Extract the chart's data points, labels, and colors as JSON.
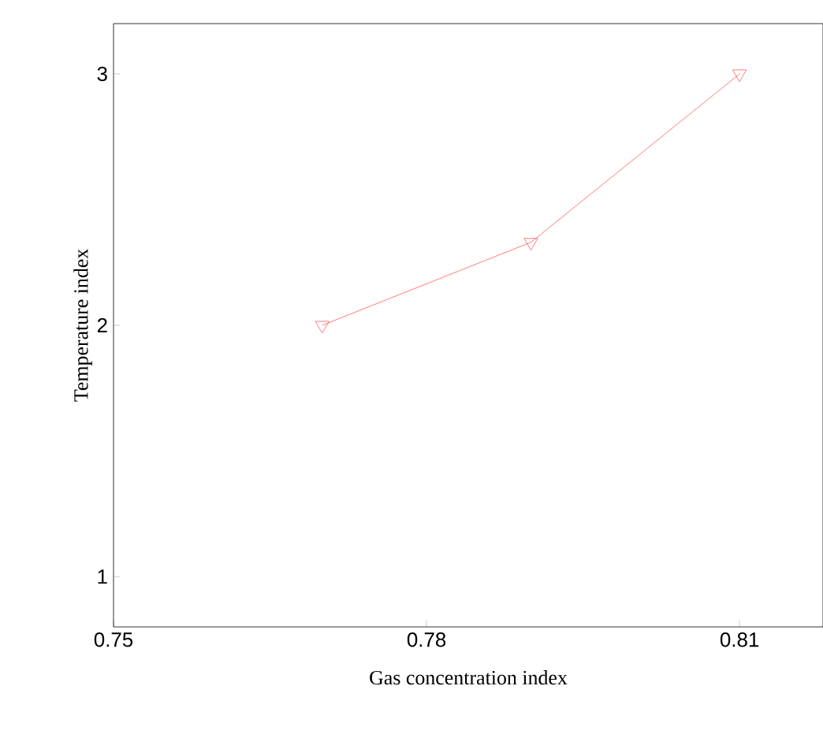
{
  "chart_data": {
    "type": "line",
    "xlabel": "Gas concentration index",
    "ylabel": "Temperature index",
    "x": [
      0.77,
      0.79,
      0.81
    ],
    "series": [
      {
        "color": "#ff5a5a",
        "values": [
          2,
          2.33,
          3
        ]
      }
    ],
    "xlim": [
      0.75,
      0.818
    ],
    "ylim": [
      0.8,
      3.2
    ],
    "xticks": [
      0.75,
      0.78,
      0.81
    ],
    "yticks": [
      1,
      2,
      3
    ],
    "marker": "triangle",
    "line_style": "solid",
    "grid": false
  }
}
